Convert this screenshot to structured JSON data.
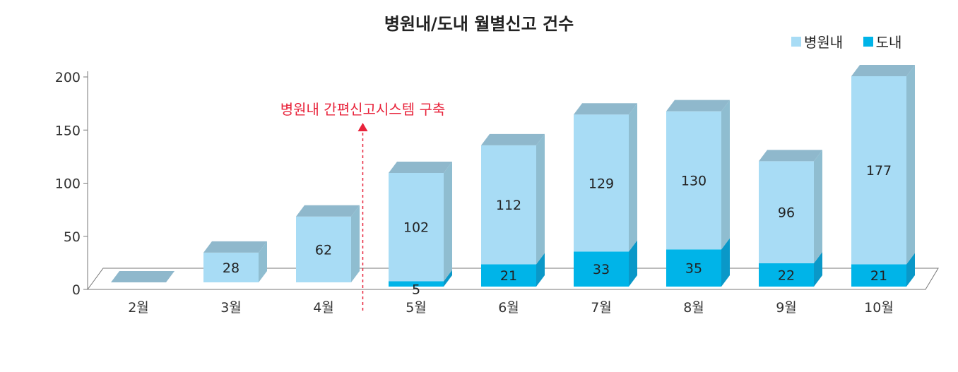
{
  "chart_data": {
    "type": "bar",
    "stacked": true,
    "title": "병원내/도내 월별신고 건수",
    "categories": [
      "2월",
      "3월",
      "4월",
      "5월",
      "6월",
      "7월",
      "8월",
      "9월",
      "10월"
    ],
    "series": [
      {
        "name": "도내",
        "values": [
          0,
          0,
          0,
          5,
          21,
          33,
          35,
          22,
          21
        ],
        "labels": [
          "",
          "",
          "",
          "5",
          "21",
          "33",
          "35",
          "22",
          "21"
        ],
        "color": "#00b4e8"
      },
      {
        "name": "병원내",
        "values": [
          0,
          28,
          62,
          102,
          112,
          129,
          130,
          96,
          177
        ],
        "labels": [
          "",
          "28",
          "62",
          "102",
          "112",
          "129",
          "130",
          "96",
          "177"
        ],
        "color": "#a8dcf5"
      }
    ],
    "y_ticks": [
      "0",
      "50",
      "100",
      "150",
      "200"
    ],
    "ylim": [
      0,
      200
    ],
    "legend_position": "top-right",
    "annotation": {
      "text": "병원내 간편신고시스템 구축",
      "between": [
        "4월",
        "5월"
      ]
    },
    "style": "3d-column"
  }
}
